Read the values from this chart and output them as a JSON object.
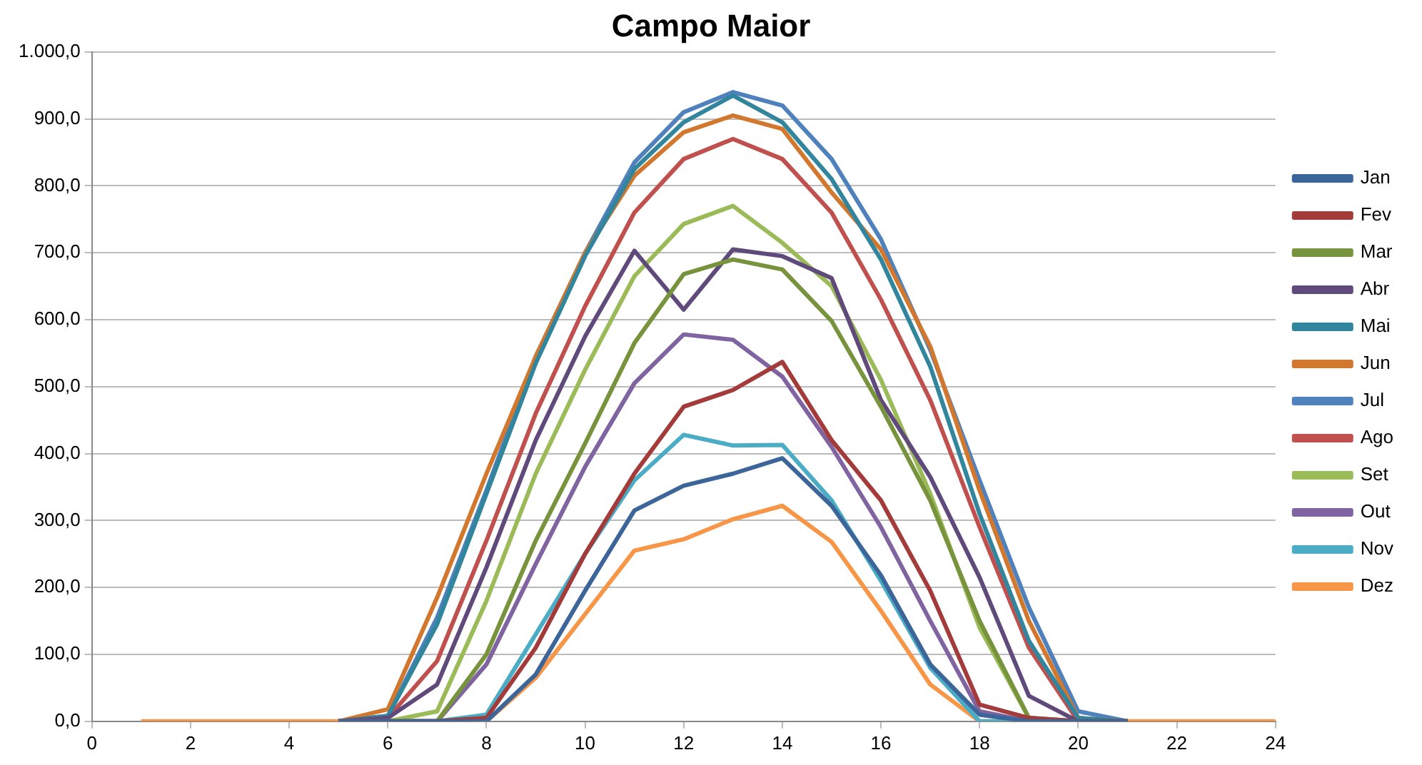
{
  "chart_data": {
    "type": "line",
    "title": "Campo Maior",
    "x": [
      1,
      2,
      3,
      4,
      5,
      6,
      7,
      8,
      9,
      10,
      11,
      12,
      13,
      14,
      15,
      16,
      17,
      18,
      19,
      20,
      21,
      22,
      23,
      24
    ],
    "series": [
      {
        "name": "Jan",
        "color": "#3c6699",
        "values": [
          null,
          null,
          null,
          null,
          0,
          0,
          0,
          0,
          70,
          195,
          315,
          352,
          370,
          393,
          322,
          218,
          85,
          10,
          0,
          0,
          0,
          null,
          null,
          null
        ]
      },
      {
        "name": "Fev",
        "color": "#a23b39",
        "values": [
          null,
          null,
          null,
          null,
          0,
          0,
          0,
          5,
          110,
          250,
          370,
          470,
          495,
          537,
          420,
          330,
          195,
          25,
          5,
          0,
          0,
          null,
          null,
          null
        ]
      },
      {
        "name": "Mar",
        "color": "#77933c",
        "values": [
          null,
          null,
          null,
          null,
          0,
          0,
          0,
          100,
          270,
          415,
          565,
          668,
          690,
          675,
          598,
          470,
          330,
          150,
          5,
          0,
          0,
          null,
          null,
          null
        ]
      },
      {
        "name": "Abr",
        "color": "#604a7b",
        "values": [
          null,
          null,
          null,
          null,
          0,
          5,
          55,
          230,
          420,
          575,
          703,
          615,
          705,
          695,
          662,
          480,
          365,
          215,
          38,
          0,
          0,
          null,
          null,
          null
        ]
      },
      {
        "name": "Mai",
        "color": "#31859c",
        "values": [
          null,
          null,
          null,
          null,
          0,
          8,
          145,
          340,
          535,
          695,
          825,
          895,
          935,
          895,
          810,
          690,
          530,
          310,
          120,
          5,
          0,
          null,
          null,
          null
        ]
      },
      {
        "name": "Jun",
        "color": "#d2772e",
        "values": [
          null,
          null,
          null,
          null,
          0,
          18,
          185,
          370,
          545,
          700,
          815,
          880,
          905,
          885,
          790,
          705,
          560,
          345,
          150,
          5,
          0,
          null,
          null,
          null
        ]
      },
      {
        "name": "Jul",
        "color": "#4f81bd",
        "values": [
          null,
          null,
          null,
          null,
          0,
          8,
          155,
          345,
          545,
          700,
          835,
          910,
          940,
          920,
          840,
          720,
          555,
          360,
          170,
          15,
          0,
          null,
          null,
          null
        ]
      },
      {
        "name": "Ago",
        "color": "#c0504d",
        "values": [
          null,
          null,
          null,
          null,
          0,
          5,
          90,
          270,
          460,
          620,
          760,
          840,
          870,
          840,
          760,
          630,
          480,
          290,
          110,
          0,
          0,
          null,
          null,
          null
        ]
      },
      {
        "name": "Set",
        "color": "#9bbb59",
        "values": [
          null,
          null,
          null,
          null,
          0,
          0,
          15,
          180,
          370,
          525,
          665,
          743,
          770,
          715,
          650,
          510,
          340,
          140,
          5,
          0,
          0,
          null,
          null,
          null
        ]
      },
      {
        "name": "Out",
        "color": "#8064a2",
        "values": [
          null,
          null,
          null,
          null,
          0,
          0,
          0,
          85,
          235,
          380,
          505,
          578,
          570,
          515,
          410,
          290,
          150,
          15,
          0,
          0,
          0,
          null,
          null,
          null
        ]
      },
      {
        "name": "Nov",
        "color": "#4bacc6",
        "values": [
          null,
          null,
          null,
          null,
          0,
          0,
          0,
          10,
          130,
          250,
          360,
          428,
          412,
          413,
          330,
          210,
          80,
          0,
          0,
          0,
          0,
          null,
          null,
          null
        ]
      },
      {
        "name": "Dez",
        "color": "#f79646",
        "values": [
          0,
          0,
          0,
          0,
          0,
          0,
          0,
          0,
          65,
          160,
          255,
          272,
          302,
          322,
          268,
          165,
          55,
          0,
          0,
          0,
          0,
          0,
          0,
          0
        ]
      }
    ],
    "xlim": [
      0,
      24
    ],
    "xticks": [
      0,
      2,
      4,
      6,
      8,
      10,
      12,
      14,
      16,
      18,
      20,
      22,
      24
    ],
    "ylim": [
      0,
      1000
    ],
    "yticks": [
      {
        "value": 0,
        "label": "0,0"
      },
      {
        "value": 100,
        "label": "100,0"
      },
      {
        "value": 200,
        "label": "200,0"
      },
      {
        "value": 300,
        "label": "300,0"
      },
      {
        "value": 400,
        "label": "400,0"
      },
      {
        "value": 500,
        "label": "500,0"
      },
      {
        "value": 600,
        "label": "600,0"
      },
      {
        "value": 700,
        "label": "700,0"
      },
      {
        "value": 800,
        "label": "800,0"
      },
      {
        "value": 900,
        "label": "900,0"
      },
      {
        "value": 1000,
        "label": "1.000,0"
      }
    ],
    "grid": "y",
    "legend": "right",
    "marker": "none",
    "line_style": "solid"
  }
}
